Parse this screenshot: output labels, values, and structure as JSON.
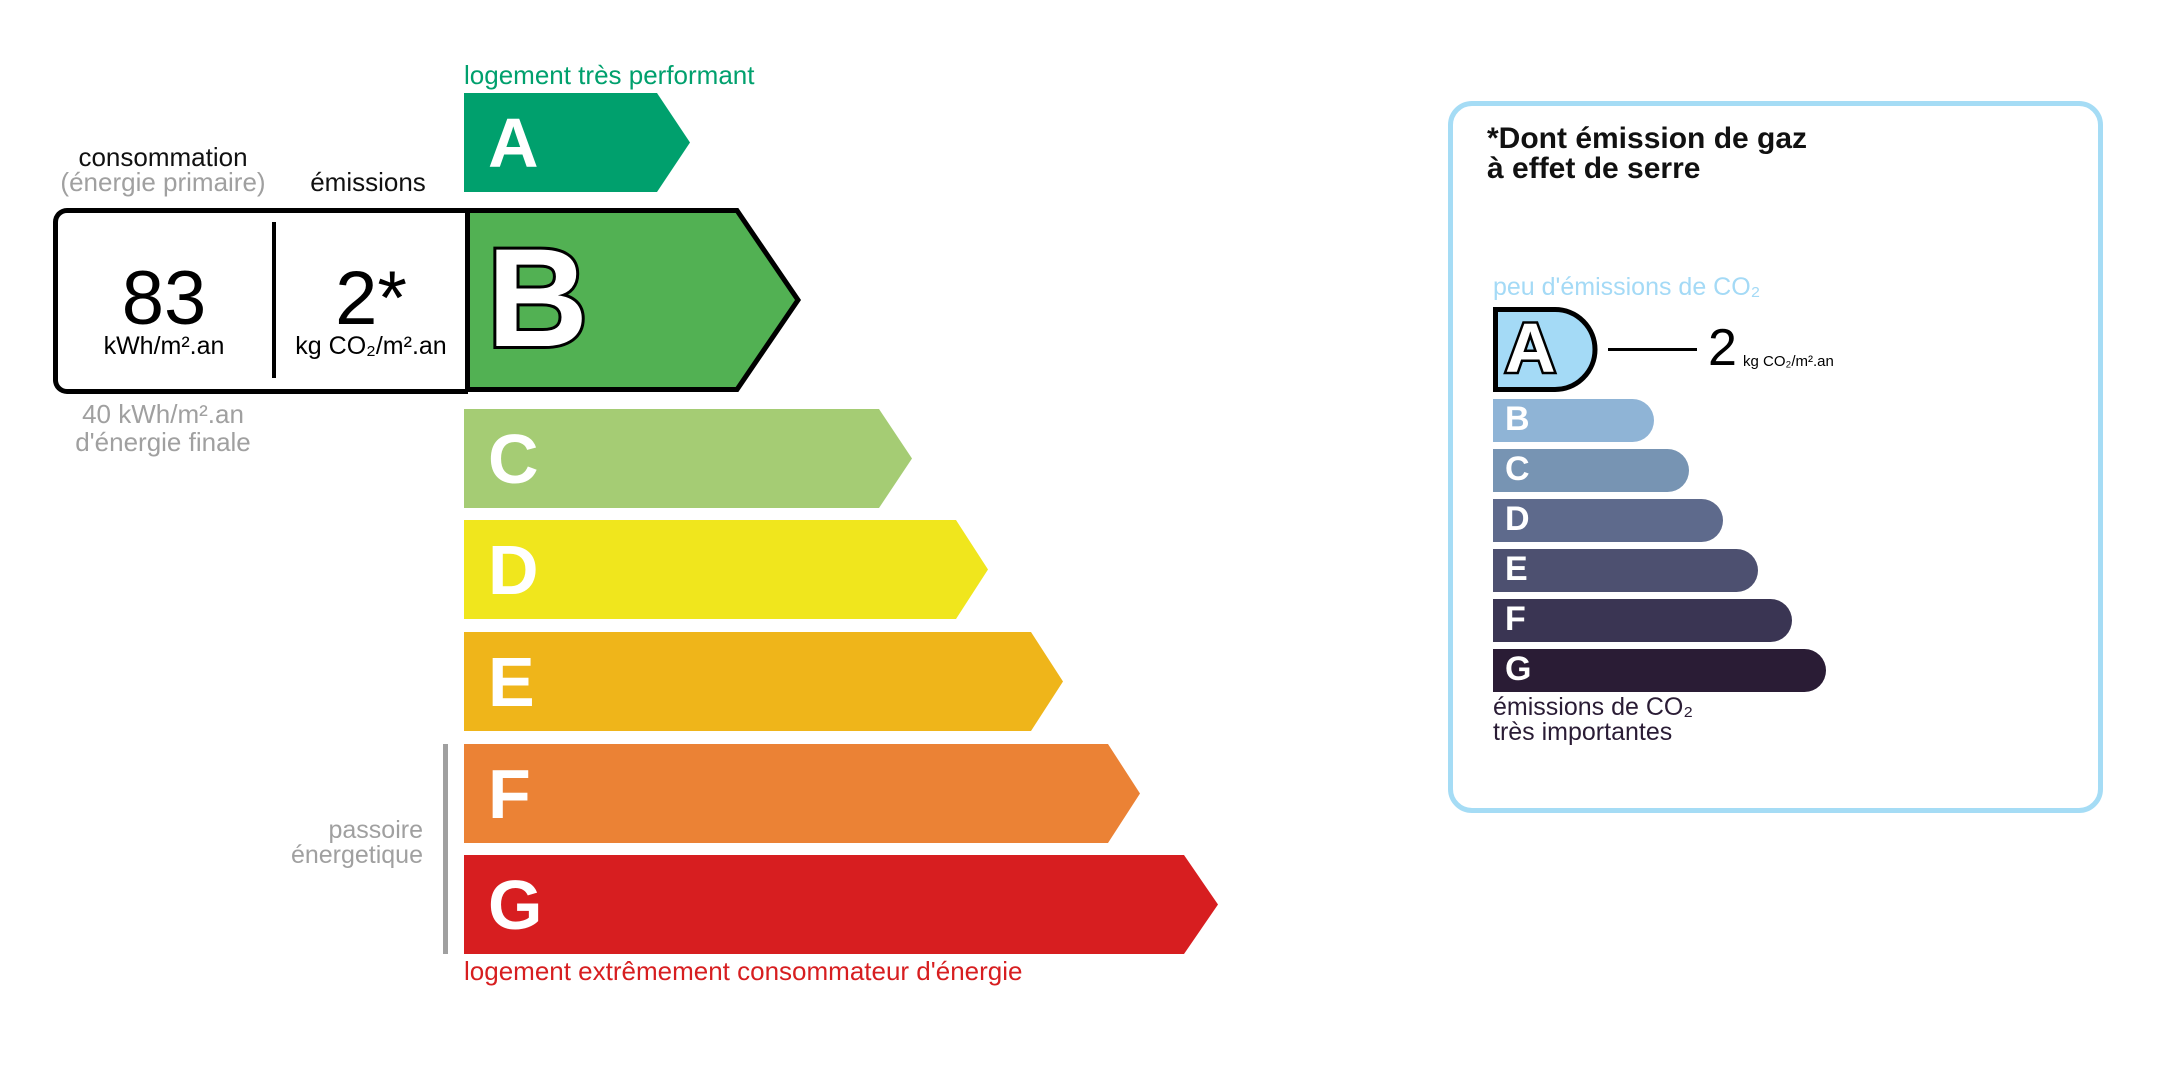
{
  "energy": {
    "top_label": "logement très performant",
    "bottom_label": "logement extrêmement consommateur d'énergie",
    "consumption_header": "consommation",
    "consumption_subheader": "(énergie primaire)",
    "emissions_header": "émissions",
    "consumption_value": "83",
    "consumption_unit": "kWh/m².an",
    "emissions_value": "2*",
    "emissions_unit": "kg CO₂/m².an",
    "final_energy_value": "40 kWh/m².an",
    "final_energy_label": "d'énergie finale",
    "passoire_line1": "passoire",
    "passoire_line2": "énergetique",
    "selected_class": "B",
    "classes": [
      {
        "letter": "A",
        "color": "#00a06d"
      },
      {
        "letter": "B",
        "color": "#52b153"
      },
      {
        "letter": "C",
        "color": "#a5cc74"
      },
      {
        "letter": "D",
        "color": "#f0e61d"
      },
      {
        "letter": "E",
        "color": "#efb51a"
      },
      {
        "letter": "F",
        "color": "#eb8235"
      },
      {
        "letter": "G",
        "color": "#d71e20"
      }
    ],
    "top_label_color": "#00a06d",
    "bottom_label_color": "#d71e20"
  },
  "ges": {
    "title_line1": "*Dont émission de gaz",
    "title_line2": "à effet de serre",
    "top_label": "peu d'émissions de CO₂",
    "bottom_label_line1": "émissions de CO₂",
    "bottom_label_line2": "très importantes",
    "selected_class": "A",
    "value": "2",
    "unit": "kg CO₂/m².an",
    "border_color": "#a5dcf5",
    "classes": [
      {
        "letter": "A",
        "color": "#a4daf6"
      },
      {
        "letter": "B",
        "color": "#8fb4d6"
      },
      {
        "letter": "C",
        "color": "#7794b3"
      },
      {
        "letter": "D",
        "color": "#5e6a8c"
      },
      {
        "letter": "E",
        "color": "#4d5070"
      },
      {
        "letter": "F",
        "color": "#3a3553"
      },
      {
        "letter": "G",
        "color": "#2a1c35"
      }
    ]
  }
}
